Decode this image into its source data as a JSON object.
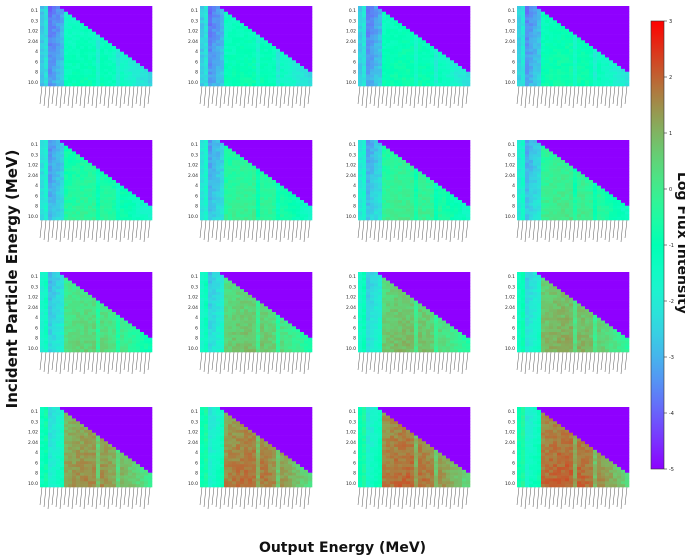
{
  "figure": {
    "ylabel": "Incident Particle Energy (MeV)",
    "xlabel": "Output Energy (MeV)",
    "colorbar_label": "Log Flux Intensity",
    "colormap": "rainbow",
    "colorbar_ticks": [
      3,
      2,
      1,
      0,
      -1,
      -2,
      -3,
      -4,
      -5
    ],
    "colorbar_range": [
      -5,
      3
    ]
  },
  "chart_data": {
    "type": "heatmap",
    "grid": {
      "rows": 4,
      "cols": 4
    },
    "row_tick_labels": [
      "0.1",
      "0.3",
      "1.02",
      "2.04",
      "4",
      "6",
      "8",
      "10.0"
    ],
    "levels": [
      [
        -2.2,
        -2.1,
        -2.0,
        -1.9
      ],
      [
        -1.5,
        -1.3,
        -1.2,
        -1.1
      ],
      [
        -0.7,
        -0.4,
        -0.3,
        -0.1
      ],
      [
        0.3,
        0.6,
        0.7,
        0.8
      ]
    ],
    "ylim": [
      0.1,
      10.0
    ],
    "masked_upper_triangle_color": "#8f00ff"
  }
}
